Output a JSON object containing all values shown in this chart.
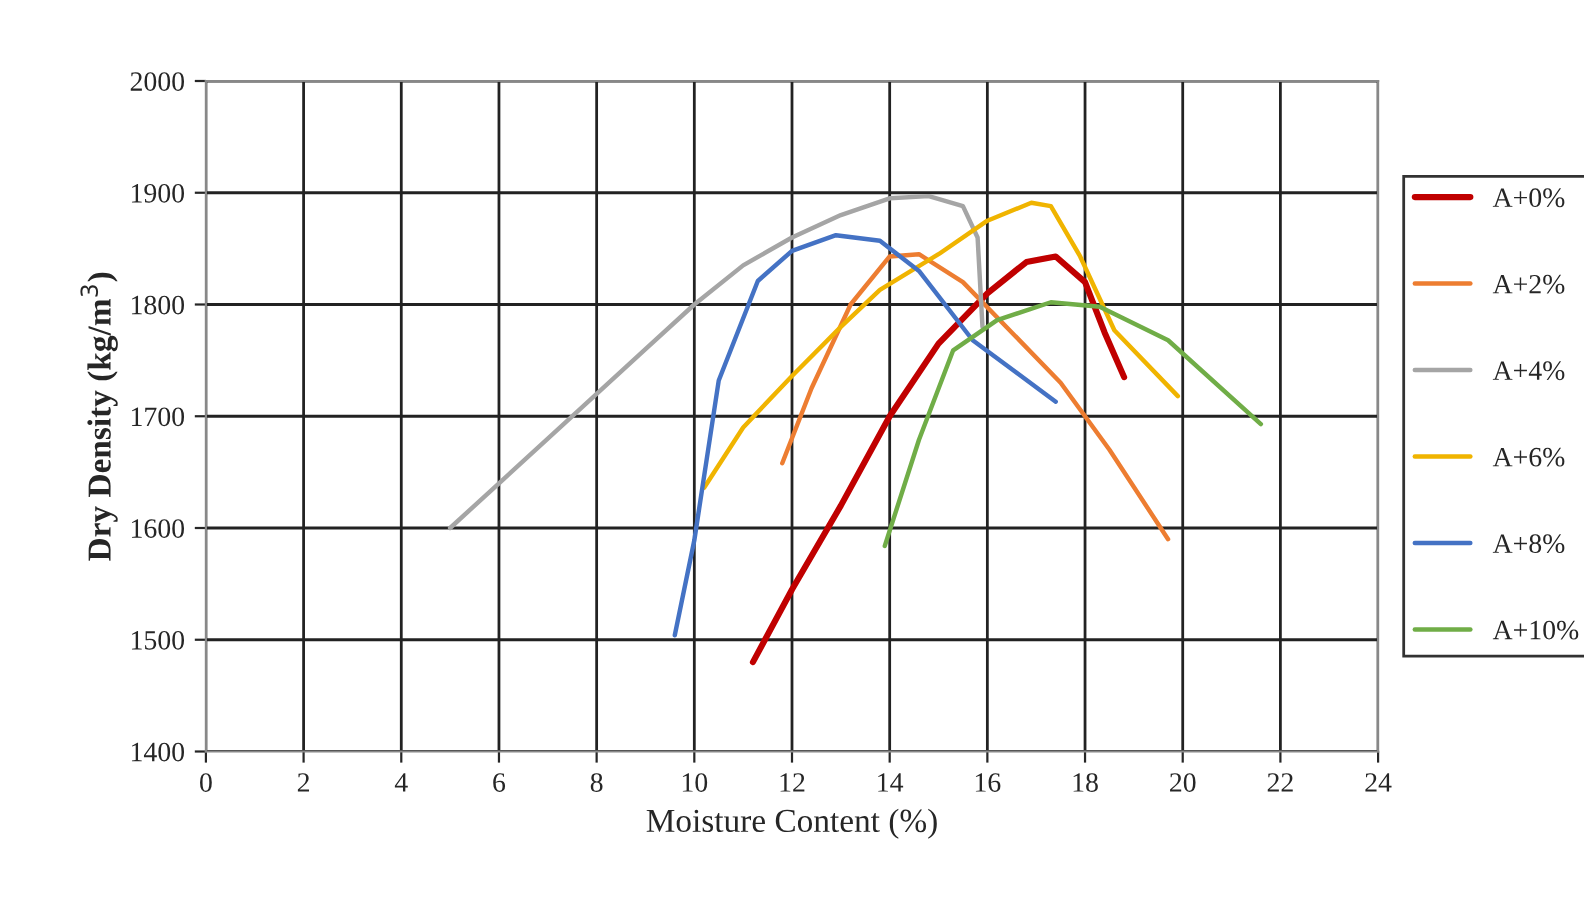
{
  "chart_data": {
    "type": "line",
    "xlabel": "Moisture Content (%)",
    "ylabel": "Dry Density (kg/m$^{3}$)",
    "xlim": [
      0,
      24
    ],
    "xticks": [
      0,
      2,
      4,
      6,
      8,
      10,
      12,
      14,
      16,
      18,
      20,
      22,
      24
    ],
    "ylim": [
      1400,
      2000
    ],
    "yticks": [
      1400,
      1500,
      1600,
      1700,
      1800,
      1900,
      2000
    ],
    "grid": true,
    "legend": "right",
    "marker": "none",
    "line_style": "solid",
    "series": [
      {
        "name": "A+0%",
        "color": "#c00000",
        "x": [
          11.2,
          12,
          13,
          14,
          15,
          16,
          16.8,
          17.4,
          18,
          18.4,
          18.8
        ],
        "values": [
          1480,
          1545,
          1620,
          1700,
          1765,
          1810,
          1838,
          1843,
          1820,
          1775,
          1735
        ]
      },
      {
        "name": "A+2%",
        "color": "#ed7d31",
        "x": [
          11.8,
          12.4,
          13.2,
          14,
          14.6,
          15.5,
          16.5,
          17.5,
          18.5,
          19.7
        ],
        "values": [
          1658,
          1725,
          1800,
          1843,
          1845,
          1820,
          1775,
          1730,
          1670,
          1590
        ]
      },
      {
        "name": "A+4%",
        "color": "#a5a5a5",
        "x": [
          5,
          6,
          7,
          8,
          9,
          10,
          11,
          12,
          13,
          14,
          14.8,
          15.5,
          15.8,
          15.9
        ],
        "values": [
          1600,
          1640,
          1680,
          1720,
          1760,
          1800,
          1835,
          1860,
          1880,
          1895,
          1897,
          1888,
          1860,
          1780
        ]
      },
      {
        "name": "A+6%",
        "color": "#f0b400",
        "x": [
          10.2,
          11,
          12,
          13,
          13.8,
          15,
          16,
          16.9,
          17.3,
          17.9,
          18.6,
          19.9
        ],
        "values": [
          1636,
          1690,
          1736,
          1780,
          1813,
          1845,
          1875,
          1891,
          1888,
          1843,
          1777,
          1718
        ]
      },
      {
        "name": "A+8%",
        "color": "#4472c4",
        "x": [
          9.6,
          10,
          10.5,
          11.3,
          12,
          12.9,
          13.8,
          14.6,
          15.7,
          17.4
        ],
        "values": [
          1504,
          1589,
          1732,
          1821,
          1848,
          1862,
          1857,
          1830,
          1768,
          1713
        ]
      },
      {
        "name": "A+10%",
        "color": "#70ad47",
        "x": [
          13.9,
          14.6,
          15.3,
          16.2,
          17.3,
          18.3,
          19.7,
          21.6
        ],
        "values": [
          1584,
          1679,
          1759,
          1786,
          1802,
          1798,
          1768,
          1693
        ]
      }
    ]
  }
}
